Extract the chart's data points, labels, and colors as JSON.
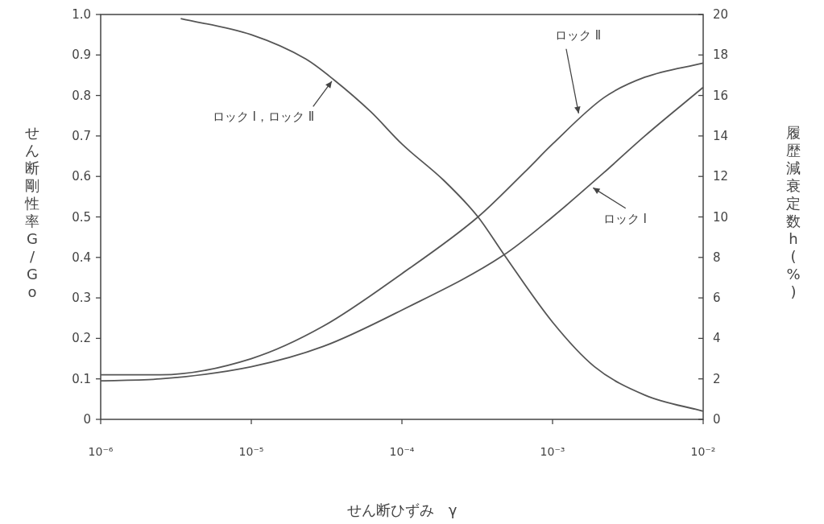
{
  "chart_data": {
    "type": "line",
    "xlabel": "せん断ひずみ　γ",
    "ylabel": "せん断剛性率　G/Go",
    "y2label": "履歴減衰定数　h　(%)",
    "log": "x",
    "xlim": [
      1e-06,
      0.01
    ],
    "xticks": [
      {
        "value": 1e-06,
        "label": "10⁻⁶"
      },
      {
        "value": 1e-05,
        "label": "10⁻⁵"
      },
      {
        "value": 0.0001,
        "label": "10⁻⁴"
      },
      {
        "value": 0.001,
        "label": "10⁻³"
      },
      {
        "value": 0.01,
        "label": "10⁻²"
      }
    ],
    "ylim": [
      0,
      1
    ],
    "yticks": [
      0,
      0.1,
      0.2,
      0.3,
      0.4,
      0.5,
      0.6,
      0.7,
      0.8,
      0.9,
      {
        "value": 1,
        "label": "1.0"
      }
    ],
    "y2lim": [
      0,
      20
    ],
    "y2ticks": [
      0,
      2,
      4,
      6,
      8,
      10,
      12,
      14,
      16,
      18,
      20
    ],
    "grid": false,
    "marker": "none",
    "line_style": "solid",
    "series": [
      {
        "color": "#555555",
        "x": [
          3.4e-06,
          1e-05,
          2.3e-05,
          3.5e-05,
          6.2e-05,
          0.0001,
          0.00019,
          0.00032,
          0.00047,
          0.001,
          0.0019,
          0.0041,
          0.01
        ],
        "values": [
          0.99,
          0.95,
          0.89,
          0.84,
          0.76,
          0.68,
          0.59,
          0.5,
          0.41,
          0.24,
          0.13,
          0.06,
          0.02
        ]
      },
      {
        "color": "#555555",
        "axis": "y2",
        "x": [
          1e-06,
          2.5e-06,
          1e-05,
          3e-05,
          0.0001,
          0.00032,
          0.00065,
          0.001,
          0.0022,
          0.0041,
          0.01
        ],
        "values": [
          2.2,
          2.2,
          3.0,
          4.6,
          7.2,
          10.0,
          12.2,
          13.6,
          15.9,
          16.9,
          17.6
        ]
      },
      {
        "color": "#555555",
        "axis": "y2",
        "x": [
          1e-06,
          2.5e-06,
          1e-05,
          3e-05,
          0.0001,
          0.00047,
          0.001,
          0.0022,
          0.0041,
          0.01
        ],
        "values": [
          1.9,
          2.0,
          2.6,
          3.6,
          5.4,
          8.1,
          10.0,
          12.2,
          14.0,
          16.4
        ]
      }
    ],
    "annotations": [
      {
        "text": "ロック Ⅰ，ロック Ⅱ",
        "x": 3.5e-05,
        "y": 0.84
      },
      {
        "text": "ロック Ⅱ",
        "x": 0.0015,
        "y": 0.75
      },
      {
        "text": "ロック Ⅰ",
        "x": 0.0018,
        "y": 0.575
      }
    ]
  }
}
